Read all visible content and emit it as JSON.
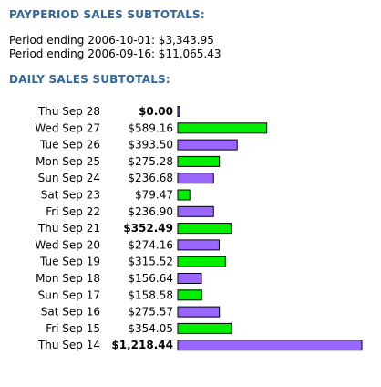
{
  "payperiod": {
    "title": "PAYPERIOD SALES SUBTOTALS:",
    "lines": [
      {
        "text": "Period ending 2006-10-01: $3,343.95"
      },
      {
        "text": "Period ending 2006-09-16: $11,065.43"
      }
    ]
  },
  "daily_title": "DAILY SALES SUBTOTALS:",
  "colors": {
    "green": "#00ee00",
    "purple": "#9966ff",
    "stroke": "#000000",
    "heading": "#336699"
  },
  "chart_data": {
    "type": "bar",
    "orientation": "horizontal",
    "title": "DAILY SALES SUBTOTALS:",
    "xlabel": "",
    "ylabel": "",
    "grid": false,
    "categories": [
      "Thu Sep 28",
      "Wed Sep 27",
      "Tue Sep 26",
      "Mon Sep 25",
      "Sun Sep 24",
      "Sat Sep 23",
      "Fri Sep 22",
      "Thu Sep 21",
      "Wed Sep 20",
      "Tue Sep 19",
      "Mon Sep 18",
      "Sun Sep 17",
      "Sat Sep 16",
      "Fri Sep 15",
      "Thu Sep 14"
    ],
    "values": [
      0.0,
      589.16,
      393.5,
      275.28,
      236.68,
      79.47,
      236.9,
      352.49,
      274.16,
      315.52,
      156.64,
      158.58,
      275.57,
      354.05,
      1218.44
    ],
    "value_labels": [
      "$0.00",
      "$589.16",
      "$393.50",
      "$275.28",
      "$236.68",
      "$79.47",
      "$236.90",
      "$352.49",
      "$274.16",
      "$315.52",
      "$156.64",
      "$158.58",
      "$275.57",
      "$354.05",
      "$1,218.44"
    ],
    "bold": [
      true,
      false,
      false,
      false,
      false,
      false,
      false,
      true,
      false,
      false,
      false,
      false,
      false,
      false,
      true
    ],
    "bar_colors": [
      "purple",
      "green",
      "purple",
      "green",
      "purple",
      "green",
      "purple",
      "green",
      "purple",
      "green",
      "purple",
      "green",
      "purple",
      "green",
      "purple"
    ],
    "xlim": [
      0,
      1218.44
    ]
  }
}
